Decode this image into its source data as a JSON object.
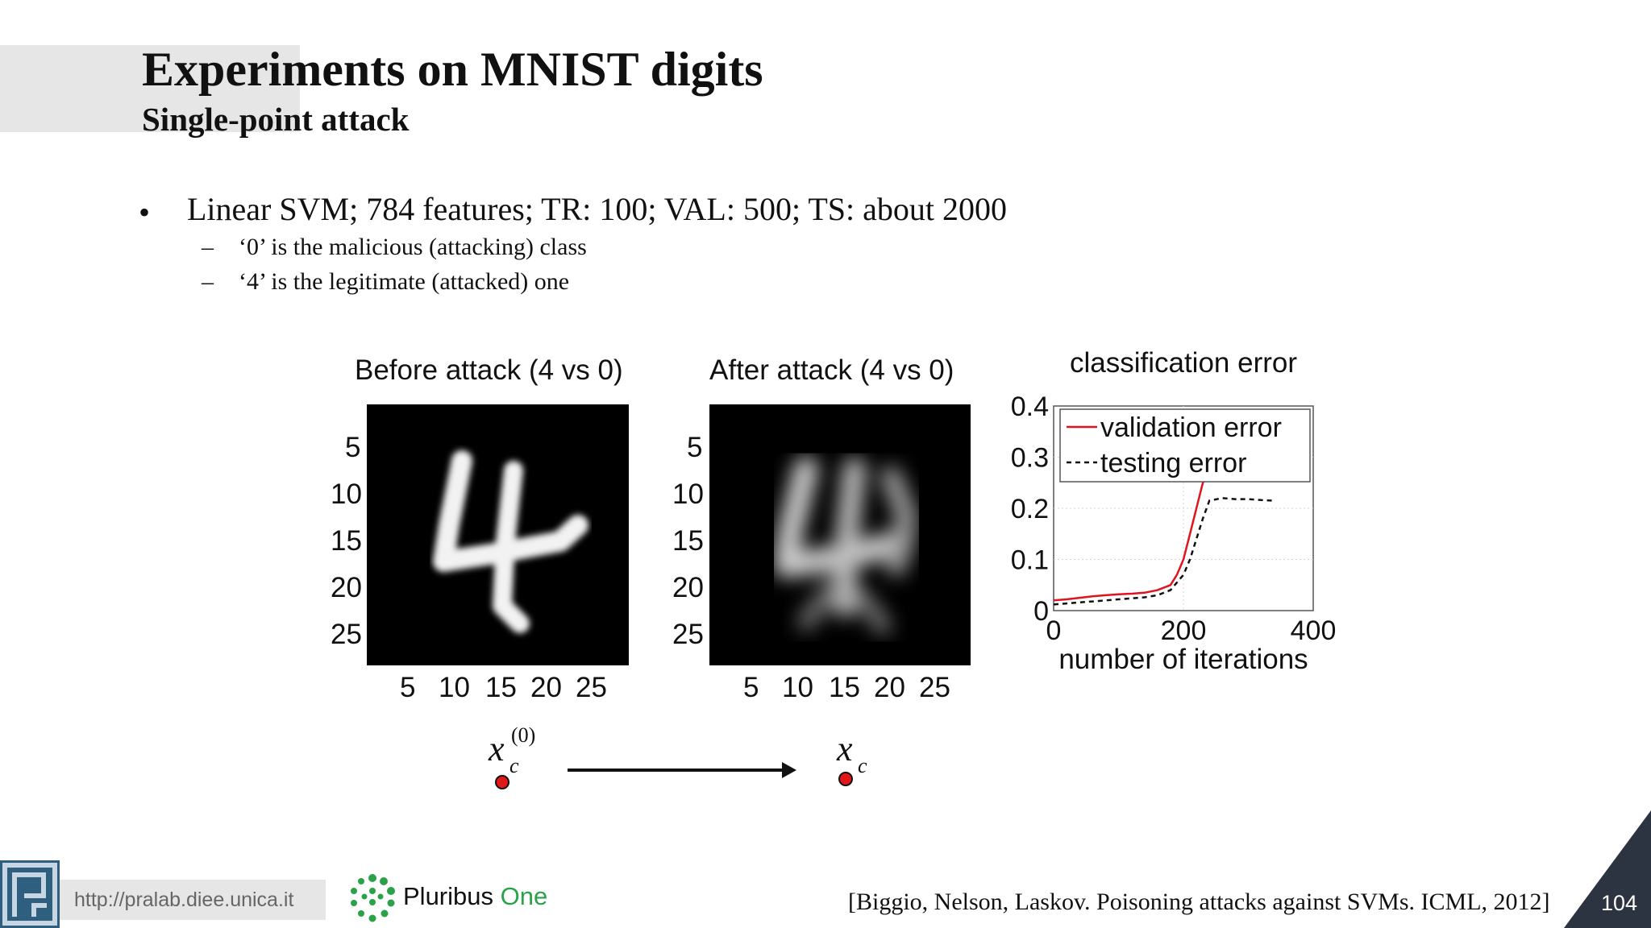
{
  "slide": {
    "title": "Experiments on MNIST digits",
    "subtitle": "Single-point attack",
    "bullet_marker": "•",
    "bullet_main": "Linear SVM; 784 features; TR: 100; VAL: 500; TS: about 2000",
    "sub_marker": "–",
    "sub_bullets": [
      "‘0’ is the malicious (attacking) class",
      "‘4’ is the legitimate (attacked) one"
    ],
    "citation": "[Biggio, Nelson, Laskov. Poisoning attacks against SVMs. ICML, 2012]",
    "page_number": "104"
  },
  "figures": {
    "before": {
      "title": "Before attack (4 vs 0)"
    },
    "after": {
      "title": "After attack (4 vs 0)"
    },
    "image_y_ticks": [
      "5",
      "10",
      "15",
      "20",
      "25"
    ],
    "image_x_ticks": [
      "5",
      "10",
      "15",
      "20",
      "25"
    ],
    "point_labels": {
      "before_base": "x",
      "before_sub": "c",
      "before_sup": "(0)",
      "after_base": "x",
      "after_sub": "c"
    }
  },
  "chart_data": {
    "type": "line",
    "title": "classification error",
    "xlabel": "number of iterations",
    "ylabel": "",
    "xlim": [
      0,
      400
    ],
    "ylim": [
      0,
      0.4
    ],
    "x_ticks": [
      "0",
      "200",
      "400"
    ],
    "y_ticks": [
      "0",
      "0.1",
      "0.2",
      "0.3",
      "0.4"
    ],
    "grid": true,
    "legend_position": "top-right",
    "series": [
      {
        "name": "validation error",
        "color": "#e0141e",
        "style": "solid",
        "x": [
          0,
          20,
          40,
          60,
          80,
          100,
          120,
          140,
          160,
          180,
          190,
          200,
          210,
          220,
          230,
          240,
          260,
          280,
          300,
          320
        ],
        "y": [
          0.02,
          0.022,
          0.025,
          0.028,
          0.03,
          0.032,
          0.033,
          0.035,
          0.04,
          0.05,
          0.07,
          0.1,
          0.15,
          0.2,
          0.25,
          0.27,
          0.275,
          0.275,
          0.275,
          0.275
        ]
      },
      {
        "name": "testing error",
        "color": "#111111",
        "style": "dashed",
        "x": [
          0,
          20,
          40,
          60,
          80,
          100,
          120,
          140,
          160,
          180,
          200,
          210,
          220,
          230,
          240,
          260,
          280,
          300,
          320,
          340
        ],
        "y": [
          0.012,
          0.014,
          0.016,
          0.018,
          0.02,
          0.022,
          0.024,
          0.026,
          0.03,
          0.04,
          0.07,
          0.1,
          0.14,
          0.18,
          0.215,
          0.22,
          0.218,
          0.218,
          0.216,
          0.215
        ]
      }
    ]
  },
  "footer": {
    "url": "http://pralab.diee.unica.it",
    "brand_main": "Pluribus ",
    "brand_accent": "One"
  },
  "colors": {
    "accent_green": "#2aa24a",
    "page_corner": "#2b3440"
  }
}
